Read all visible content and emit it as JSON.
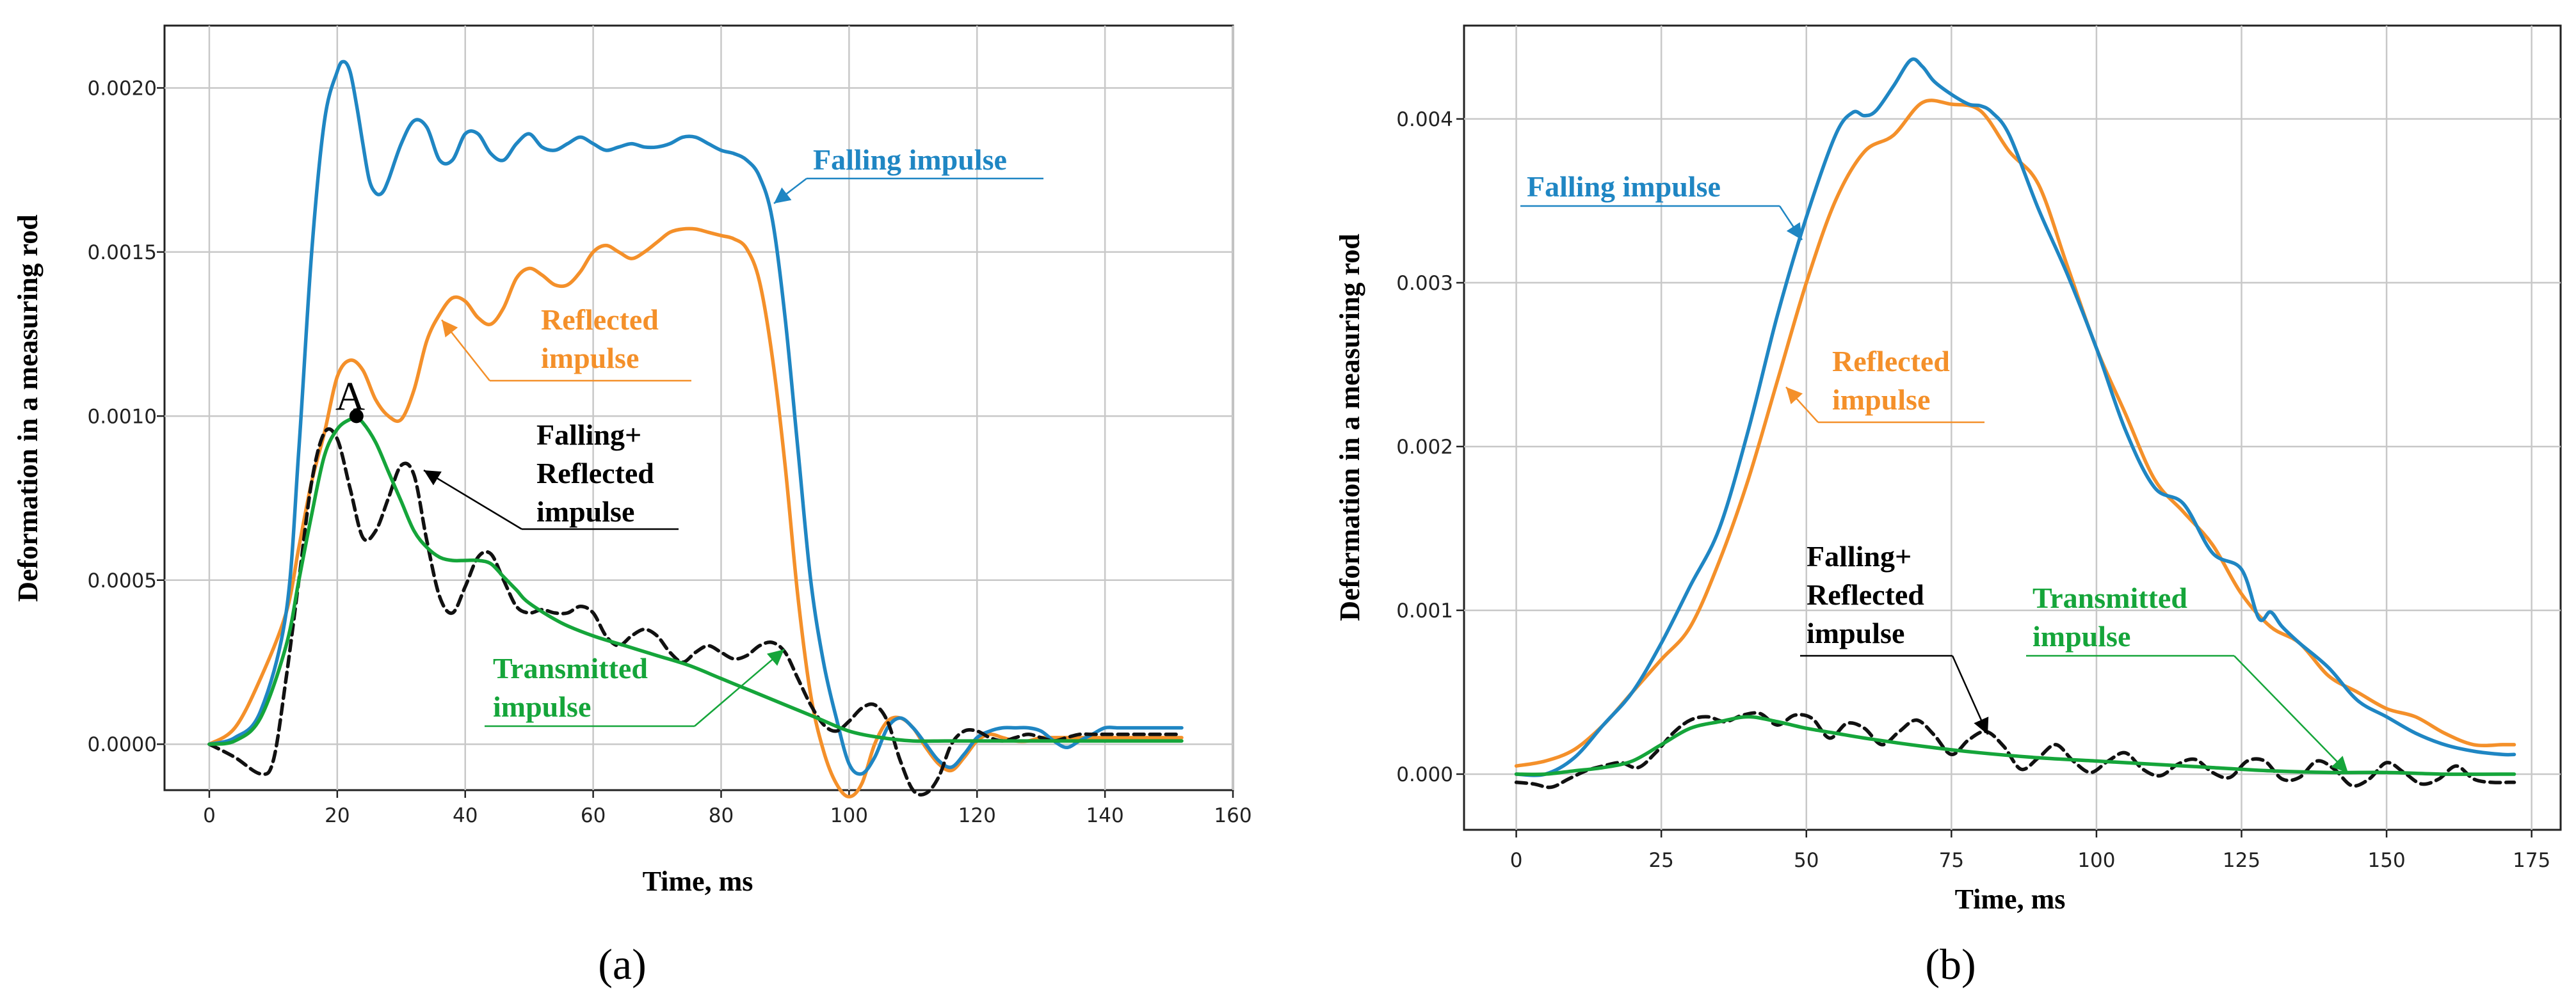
{
  "chart_data": [
    {
      "type": "line",
      "subtitle": "(a)",
      "xlabel": "Time, ms",
      "ylabel": "Deformation in a measuring rod",
      "xlim": [
        -7,
        160
      ],
      "ylim": [
        -0.00014,
        0.00219
      ],
      "xticks": [
        "0",
        "20",
        "40",
        "60",
        "80",
        "100",
        "120",
        "140",
        "160"
      ],
      "yticks": [
        "0.0000",
        "0.0005",
        "0.0010",
        "0.0015",
        "0.0020"
      ],
      "grid": true,
      "point_label": "A",
      "point": [
        23,
        0.001
      ],
      "series": [
        {
          "name": "Falling impulse",
          "color": "#1f86c3",
          "dash": false,
          "x": [
            0,
            4,
            8,
            12,
            14,
            16,
            18,
            20,
            21,
            22,
            23,
            24,
            25,
            26,
            27,
            28,
            30,
            32,
            34,
            36,
            38,
            40,
            42,
            44,
            46,
            48,
            50,
            52,
            54,
            56,
            58,
            60,
            62,
            64,
            66,
            68,
            70,
            72,
            74,
            76,
            78,
            80,
            82,
            84,
            86,
            88,
            90,
            92,
            94,
            96,
            98,
            100,
            102,
            104,
            106,
            108,
            110,
            112,
            114,
            116,
            118,
            120,
            122,
            124,
            126,
            128,
            130,
            132,
            134,
            136,
            138,
            140,
            142,
            144,
            146,
            148,
            150,
            152
          ],
          "y": [
            0,
            2e-05,
            0.0001,
            0.0004,
            0.0009,
            0.0015,
            0.0019,
            0.00205,
            0.00208,
            0.00205,
            0.00195,
            0.00183,
            0.00172,
            0.00168,
            0.00168,
            0.00172,
            0.00183,
            0.0019,
            0.00188,
            0.00178,
            0.00178,
            0.00186,
            0.00186,
            0.0018,
            0.00178,
            0.00183,
            0.00186,
            0.00182,
            0.00181,
            0.00183,
            0.00185,
            0.00183,
            0.00181,
            0.00182,
            0.00183,
            0.00182,
            0.00182,
            0.00183,
            0.00185,
            0.00185,
            0.00183,
            0.00181,
            0.0018,
            0.00178,
            0.00173,
            0.0016,
            0.0013,
            0.0009,
            0.0005,
            0.00025,
            8e-05,
            -6e-05,
            -9e-05,
            -4e-05,
            5e-05,
            8e-05,
            5e-05,
            0,
            -5e-05,
            -7e-05,
            -3e-05,
            2e-05,
            4e-05,
            5e-05,
            5e-05,
            5e-05,
            4e-05,
            1e-05,
            -1e-05,
            1e-05,
            3e-05,
            5e-05,
            5e-05,
            5e-05,
            5e-05,
            5e-05,
            5e-05,
            5e-05
          ]
        },
        {
          "name": "Reflected impulse",
          "color": "#f4902a",
          "dash": false,
          "x": [
            0,
            4,
            8,
            12,
            14,
            16,
            18,
            20,
            22,
            24,
            26,
            28,
            30,
            32,
            34,
            36,
            38,
            40,
            42,
            44,
            46,
            48,
            50,
            52,
            54,
            56,
            58,
            60,
            62,
            64,
            66,
            68,
            70,
            72,
            74,
            76,
            78,
            80,
            82,
            84,
            86,
            88,
            90,
            92,
            94,
            96,
            98,
            100,
            102,
            104,
            106,
            108,
            110,
            112,
            114,
            116,
            118,
            120,
            122,
            124,
            126,
            128,
            130,
            132,
            134,
            136,
            138,
            140,
            142,
            144,
            146,
            148,
            150,
            152
          ],
          "y": [
            0,
            5e-05,
            0.0002,
            0.0004,
            0.0006,
            0.0008,
            0.00095,
            0.00112,
            0.00117,
            0.00114,
            0.00105,
            0.001,
            0.00099,
            0.00108,
            0.00123,
            0.00131,
            0.00136,
            0.00135,
            0.0013,
            0.00128,
            0.00133,
            0.00142,
            0.00145,
            0.00143,
            0.0014,
            0.0014,
            0.00144,
            0.0015,
            0.00152,
            0.0015,
            0.00148,
            0.0015,
            0.00153,
            0.00156,
            0.00157,
            0.00157,
            0.00156,
            0.00155,
            0.00154,
            0.00151,
            0.00141,
            0.00118,
            0.00085,
            0.00045,
            0.00015,
            -2e-05,
            -0.00012,
            -0.00016,
            -0.00012,
            0,
            7e-05,
            8e-05,
            5e-05,
            -1e-05,
            -6e-05,
            -8e-05,
            -4e-05,
            1e-05,
            3e-05,
            2e-05,
            1e-05,
            1e-05,
            2e-05,
            2e-05,
            2e-05,
            2e-05,
            2e-05,
            2e-05,
            2e-05,
            2e-05,
            2e-05,
            2e-05,
            2e-05,
            2e-05
          ]
        },
        {
          "name": "Falling+ Reflected impulse",
          "color": "#111111",
          "dash": true,
          "x": [
            0,
            4,
            8,
            10,
            12,
            14,
            16,
            18,
            20,
            22,
            24,
            26,
            28,
            30,
            32,
            34,
            36,
            38,
            40,
            42,
            44,
            46,
            48,
            50,
            52,
            54,
            56,
            58,
            60,
            62,
            64,
            66,
            68,
            70,
            72,
            74,
            76,
            78,
            80,
            82,
            84,
            86,
            88,
            90,
            92,
            94,
            96,
            98,
            100,
            102,
            104,
            106,
            108,
            110,
            112,
            114,
            116,
            118,
            120,
            122,
            124,
            126,
            128,
            130,
            132,
            134,
            136,
            138,
            140,
            142,
            144,
            146,
            148,
            150,
            152
          ],
          "y": [
            0,
            -4e-05,
            -9e-05,
            -5e-05,
            0.0002,
            0.0005,
            0.0008,
            0.00095,
            0.00093,
            0.00078,
            0.00063,
            0.00065,
            0.00075,
            0.00085,
            0.00082,
            0.00062,
            0.00045,
            0.0004,
            0.00048,
            0.00057,
            0.00058,
            0.0005,
            0.00042,
            0.0004,
            0.00041,
            0.0004,
            0.0004,
            0.00042,
            0.0004,
            0.00033,
            0.0003,
            0.00033,
            0.00035,
            0.00033,
            0.00028,
            0.00025,
            0.00028,
            0.0003,
            0.00028,
            0.00026,
            0.00027,
            0.0003,
            0.00031,
            0.00028,
            0.0002,
            0.00012,
            6e-05,
            4e-05,
            7e-05,
            0.00011,
            0.00012,
            7e-05,
            -5e-05,
            -0.00014,
            -0.00015,
            -0.0001,
            0,
            4e-05,
            4e-05,
            2e-05,
            1e-05,
            2e-05,
            3e-05,
            2e-05,
            1e-05,
            2e-05,
            3e-05,
            3e-05,
            3e-05,
            3e-05,
            3e-05,
            3e-05,
            3e-05,
            3e-05,
            3e-05
          ]
        },
        {
          "name": "Transmitted impulse",
          "color": "#15a53a",
          "dash": false,
          "x": [
            0,
            4,
            8,
            12,
            14,
            16,
            18,
            20,
            22,
            23,
            24,
            26,
            28,
            30,
            32,
            34,
            36,
            38,
            40,
            42,
            44,
            46,
            48,
            50,
            55,
            60,
            65,
            70,
            75,
            80,
            85,
            90,
            95,
            100,
            105,
            110,
            115,
            120,
            130,
            140,
            152
          ],
          "y": [
            0,
            1e-05,
            8e-05,
            0.0003,
            0.0005,
            0.0007,
            0.00088,
            0.00096,
            0.00099,
            0.00099,
            0.00098,
            0.00092,
            0.00083,
            0.00074,
            0.00065,
            0.0006,
            0.00057,
            0.00056,
            0.00056,
            0.00056,
            0.00055,
            0.00051,
            0.00047,
            0.00043,
            0.00037,
            0.00033,
            0.0003,
            0.00027,
            0.00024,
            0.0002,
            0.00016,
            0.00012,
            8e-05,
            4e-05,
            2e-05,
            1e-05,
            1e-05,
            1e-05,
            1e-05,
            1e-05,
            1e-05
          ]
        }
      ],
      "annotations": [
        {
          "lines": [
            "Falling impulse"
          ],
          "color": "#1f86c3"
        },
        {
          "lines": [
            "Reflected",
            "impulse"
          ],
          "color": "#f4902a"
        },
        {
          "lines": [
            "Falling+",
            "Reflected",
            "impulse"
          ],
          "color": "#000000"
        },
        {
          "lines": [
            "Transmitted",
            "impulse"
          ],
          "color": "#15a53a"
        }
      ]
    },
    {
      "type": "line",
      "subtitle": "(b)",
      "xlabel": "Time, ms",
      "ylabel": "Deformation in a measuring rod",
      "xlim": [
        -9,
        180
      ],
      "ylim": [
        -0.00034,
        0.00457
      ],
      "xticks": [
        "0",
        "25",
        "50",
        "75",
        "100",
        "125",
        "150",
        "175"
      ],
      "yticks": [
        "0.000",
        "0.001",
        "0.002",
        "0.003",
        "0.004"
      ],
      "grid": true,
      "series": [
        {
          "name": "Falling impulse",
          "color": "#1f86c3",
          "dash": false,
          "x": [
            0,
            5,
            10,
            15,
            20,
            25,
            30,
            35,
            40,
            45,
            50,
            55,
            58,
            60,
            62,
            65,
            68,
            70,
            72,
            75,
            78,
            80,
            82,
            85,
            90,
            95,
            100,
            105,
            110,
            115,
            120,
            125,
            128,
            130,
            132,
            135,
            140,
            145,
            150,
            155,
            160,
            165,
            170,
            172
          ],
          "y": [
            0,
            0,
            0.0001,
            0.0003,
            0.0005,
            0.0008,
            0.00115,
            0.0015,
            0.0021,
            0.0028,
            0.0034,
            0.0039,
            0.00404,
            0.00402,
            0.00405,
            0.0042,
            0.00436,
            0.00432,
            0.00423,
            0.00415,
            0.00409,
            0.00408,
            0.00404,
            0.0039,
            0.00345,
            0.00305,
            0.0026,
            0.0021,
            0.00175,
            0.00165,
            0.00135,
            0.00125,
            0.00095,
            0.00099,
            0.0009,
            0.0008,
            0.00065,
            0.00045,
            0.00035,
            0.00025,
            0.00018,
            0.00014,
            0.00012,
            0.00012
          ]
        },
        {
          "name": "Reflected impulse",
          "color": "#f4902a",
          "dash": false,
          "x": [
            0,
            5,
            10,
            15,
            20,
            25,
            30,
            35,
            40,
            45,
            50,
            55,
            60,
            65,
            70,
            75,
            80,
            85,
            90,
            95,
            100,
            105,
            110,
            115,
            120,
            125,
            130,
            135,
            140,
            145,
            150,
            155,
            160,
            165,
            170,
            172
          ],
          "y": [
            5e-05,
            8e-05,
            0.00015,
            0.0003,
            0.0005,
            0.0007,
            0.0009,
            0.0013,
            0.0018,
            0.0024,
            0.003,
            0.0035,
            0.0038,
            0.0039,
            0.0041,
            0.00409,
            0.00405,
            0.0038,
            0.0036,
            0.0031,
            0.0026,
            0.0022,
            0.0018,
            0.0016,
            0.0014,
            0.0011,
            0.0009,
            0.0008,
            0.0006,
            0.0005,
            0.0004,
            0.00035,
            0.00025,
            0.00018,
            0.00018,
            0.00018
          ]
        },
        {
          "name": "Falling+ Reflected impulse",
          "color": "#111111",
          "dash": true,
          "x": [
            0,
            3,
            6,
            9,
            12,
            15,
            18,
            21,
            24,
            27,
            30,
            33,
            36,
            39,
            42,
            45,
            48,
            51,
            54,
            57,
            60,
            63,
            66,
            69,
            72,
            75,
            78,
            81,
            84,
            87,
            90,
            93,
            96,
            99,
            102,
            105,
            108,
            111,
            114,
            117,
            120,
            123,
            126,
            129,
            132,
            135,
            138,
            141,
            144,
            147,
            150,
            153,
            156,
            159,
            162,
            165,
            168,
            171,
            172
          ],
          "y": [
            -5e-05,
            -6e-05,
            -8e-05,
            -3e-05,
            2e-05,
            5e-05,
            7e-05,
            4e-05,
            0.00013,
            0.00025,
            0.00033,
            0.00035,
            0.00032,
            0.00036,
            0.00037,
            0.0003,
            0.00036,
            0.00034,
            0.00022,
            0.00031,
            0.00028,
            0.00018,
            0.00026,
            0.00033,
            0.00024,
            0.00012,
            0.00021,
            0.00026,
            0.00017,
            3e-05,
            0.0001,
            0.00018,
            8e-05,
            1e-05,
            8e-05,
            0.00013,
            3e-05,
            -1e-05,
            6e-05,
            9e-05,
            1e-05,
            -2e-05,
            8e-05,
            8e-05,
            -3e-05,
            -2e-05,
            8e-05,
            3e-05,
            -7e-05,
            -3e-05,
            7e-05,
            1e-05,
            -6e-05,
            -3e-05,
            5e-05,
            -3e-05,
            -5e-05,
            -5e-05,
            -5e-05
          ]
        },
        {
          "name": "Transmitted impulse",
          "color": "#15a53a",
          "dash": false,
          "x": [
            0,
            5,
            10,
            15,
            20,
            25,
            30,
            35,
            40,
            45,
            50,
            55,
            60,
            70,
            80,
            90,
            100,
            110,
            120,
            130,
            140,
            150,
            160,
            172
          ],
          "y": [
            0,
            0,
            2e-05,
            4e-05,
            8e-05,
            0.00018,
            0.00028,
            0.00032,
            0.00035,
            0.00032,
            0.00028,
            0.00025,
            0.00022,
            0.00017,
            0.00013,
            0.0001,
            8e-05,
            6e-05,
            4e-05,
            2e-05,
            1e-05,
            1e-05,
            0,
            0
          ]
        }
      ],
      "annotations": [
        {
          "lines": [
            "Falling impulse"
          ],
          "color": "#1f86c3"
        },
        {
          "lines": [
            "Reflected",
            "impulse"
          ],
          "color": "#f4902a"
        },
        {
          "lines": [
            "Falling+",
            "Reflected",
            "impulse"
          ],
          "color": "#000000"
        },
        {
          "lines": [
            "Transmitted",
            "impulse"
          ],
          "color": "#15a53a"
        }
      ]
    }
  ]
}
